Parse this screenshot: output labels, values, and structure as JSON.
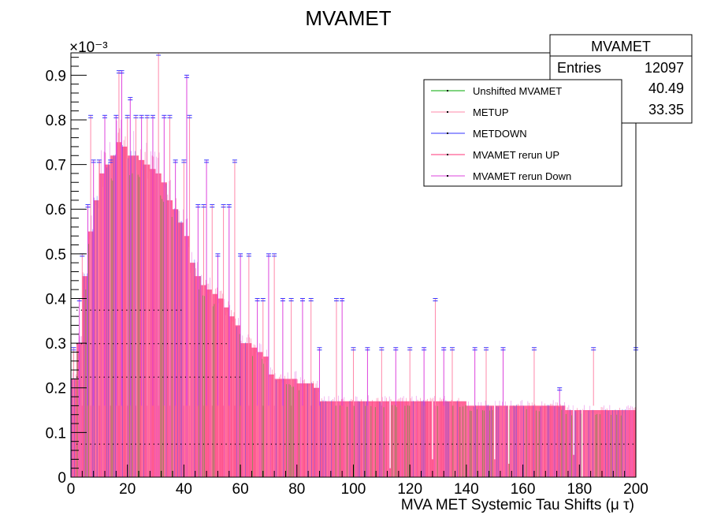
{
  "chart_data": {
    "type": "bar",
    "title": "MVAMET",
    "xlabel": "MVA MET Systemic Tau Shifts (μ τ)",
    "ylabel": "",
    "y_exponent_label": "×10⁻³",
    "xlim": [
      0,
      200
    ],
    "ylim": [
      0,
      0.95
    ],
    "x_ticks": [
      "0",
      "20",
      "40",
      "60",
      "80",
      "100",
      "120",
      "140",
      "160",
      "180",
      "200"
    ],
    "x_tick_values": [
      0,
      20,
      40,
      60,
      80,
      100,
      120,
      140,
      160,
      180,
      200
    ],
    "y_ticks": [
      "0",
      "0.1",
      "0.2",
      "0.3",
      "0.4",
      "0.5",
      "0.6",
      "0.7",
      "0.8",
      "0.9"
    ],
    "y_tick_values": [
      0,
      0.1,
      0.2,
      0.3,
      0.4,
      0.5,
      0.6,
      0.7,
      0.8,
      0.9
    ],
    "grid": false,
    "legend_position": "top-right",
    "stats": {
      "title": "MVAMET",
      "rows": [
        {
          "label": "Entries",
          "value": "12097"
        },
        {
          "label": "",
          "value": "40.49"
        },
        {
          "label": "",
          "value": "33.35"
        }
      ]
    },
    "series": [
      {
        "name": "Unshifted MVAMET",
        "color": "#00aa00"
      },
      {
        "name": "METUP",
        "color": "#ff88aa"
      },
      {
        "name": "METDOWN",
        "color": "#3333ff"
      },
      {
        "name": "MVAMET rerun UP",
        "color": "#ff3377"
      },
      {
        "name": "MVAMET rerun Down",
        "color": "#dd44dd"
      }
    ],
    "fill_color": "#ff6699",
    "envelope": {
      "x": [
        0,
        2,
        4,
        6,
        8,
        10,
        12,
        14,
        16,
        18,
        20,
        22,
        24,
        26,
        28,
        30,
        32,
        34,
        36,
        38,
        40,
        42,
        44,
        46,
        48,
        50,
        52,
        54,
        56,
        58,
        60,
        62,
        64,
        66,
        68,
        70,
        72,
        74,
        76,
        78,
        80,
        82,
        84,
        86,
        88,
        90,
        95,
        100,
        105,
        110,
        115,
        120,
        125,
        130,
        135,
        140,
        145,
        150,
        155,
        160,
        165,
        170,
        175,
        180,
        185,
        190,
        195,
        200
      ],
      "y": [
        0.22,
        0.3,
        0.45,
        0.55,
        0.62,
        0.68,
        0.7,
        0.72,
        0.75,
        0.74,
        0.72,
        0.72,
        0.71,
        0.7,
        0.69,
        0.68,
        0.66,
        0.62,
        0.6,
        0.57,
        0.54,
        0.48,
        0.45,
        0.43,
        0.42,
        0.41,
        0.4,
        0.38,
        0.36,
        0.34,
        0.3,
        0.3,
        0.29,
        0.28,
        0.27,
        0.23,
        0.22,
        0.22,
        0.22,
        0.22,
        0.21,
        0.21,
        0.21,
        0.2,
        0.17,
        0.17,
        0.17,
        0.17,
        0.17,
        0.17,
        0.17,
        0.17,
        0.17,
        0.17,
        0.17,
        0.16,
        0.16,
        0.16,
        0.16,
        0.16,
        0.16,
        0.16,
        0.15,
        0.15,
        0.15,
        0.15,
        0.15,
        0.15
      ]
    },
    "spikes": [
      {
        "x": 1,
        "y": 0.29
      },
      {
        "x": 3,
        "y": 0.4
      },
      {
        "x": 4,
        "y": 0.5
      },
      {
        "x": 6,
        "y": 0.61
      },
      {
        "x": 7,
        "y": 0.81
      },
      {
        "x": 8,
        "y": 0.71
      },
      {
        "x": 10,
        "y": 0.71
      },
      {
        "x": 12,
        "y": 0.81
      },
      {
        "x": 14,
        "y": 0.71
      },
      {
        "x": 16,
        "y": 0.81
      },
      {
        "x": 17,
        "y": 0.91
      },
      {
        "x": 18,
        "y": 0.91
      },
      {
        "x": 20,
        "y": 0.81
      },
      {
        "x": 21,
        "y": 0.85
      },
      {
        "x": 23,
        "y": 0.81
      },
      {
        "x": 25,
        "y": 0.81
      },
      {
        "x": 27,
        "y": 0.81
      },
      {
        "x": 29,
        "y": 0.81
      },
      {
        "x": 31,
        "y": 0.95
      },
      {
        "x": 33,
        "y": 0.81
      },
      {
        "x": 35,
        "y": 0.81
      },
      {
        "x": 37,
        "y": 0.71
      },
      {
        "x": 40,
        "y": 0.71
      },
      {
        "x": 41,
        "y": 0.9
      },
      {
        "x": 42,
        "y": 0.81
      },
      {
        "x": 45,
        "y": 0.61
      },
      {
        "x": 47,
        "y": 0.61
      },
      {
        "x": 48,
        "y": 0.71
      },
      {
        "x": 50,
        "y": 0.61
      },
      {
        "x": 52,
        "y": 0.5
      },
      {
        "x": 54,
        "y": 0.61
      },
      {
        "x": 56,
        "y": 0.61
      },
      {
        "x": 58,
        "y": 0.71
      },
      {
        "x": 60,
        "y": 0.5
      },
      {
        "x": 63,
        "y": 0.5
      },
      {
        "x": 66,
        "y": 0.4
      },
      {
        "x": 68,
        "y": 0.4
      },
      {
        "x": 70,
        "y": 0.5
      },
      {
        "x": 72,
        "y": 0.5
      },
      {
        "x": 75,
        "y": 0.4
      },
      {
        "x": 78,
        "y": 0.4
      },
      {
        "x": 82,
        "y": 0.4
      },
      {
        "x": 85,
        "y": 0.4
      },
      {
        "x": 88,
        "y": 0.29
      },
      {
        "x": 94,
        "y": 0.4
      },
      {
        "x": 96,
        "y": 0.4
      },
      {
        "x": 100,
        "y": 0.29
      },
      {
        "x": 105,
        "y": 0.29
      },
      {
        "x": 110,
        "y": 0.29
      },
      {
        "x": 115,
        "y": 0.29
      },
      {
        "x": 120,
        "y": 0.29
      },
      {
        "x": 125,
        "y": 0.29
      },
      {
        "x": 129,
        "y": 0.4
      },
      {
        "x": 132,
        "y": 0.29
      },
      {
        "x": 135,
        "y": 0.29
      },
      {
        "x": 143,
        "y": 0.29
      },
      {
        "x": 147,
        "y": 0.29
      },
      {
        "x": 153,
        "y": 0.29
      },
      {
        "x": 164,
        "y": 0.29
      },
      {
        "x": 173,
        "y": 0.2
      },
      {
        "x": 185,
        "y": 0.29
      },
      {
        "x": 200,
        "y": 0.29
      }
    ],
    "dips": [
      {
        "x": 113,
        "y": 0.02
      },
      {
        "x": 128,
        "y": 0.04
      },
      {
        "x": 150,
        "y": 0.04
      },
      {
        "x": 155,
        "y": 0.03
      },
      {
        "x": 178,
        "y": 0.05
      },
      {
        "x": 181,
        "y": 0.0
      }
    ],
    "dot_levels": [
      0.075,
      0.225,
      0.3,
      0.375
    ]
  }
}
